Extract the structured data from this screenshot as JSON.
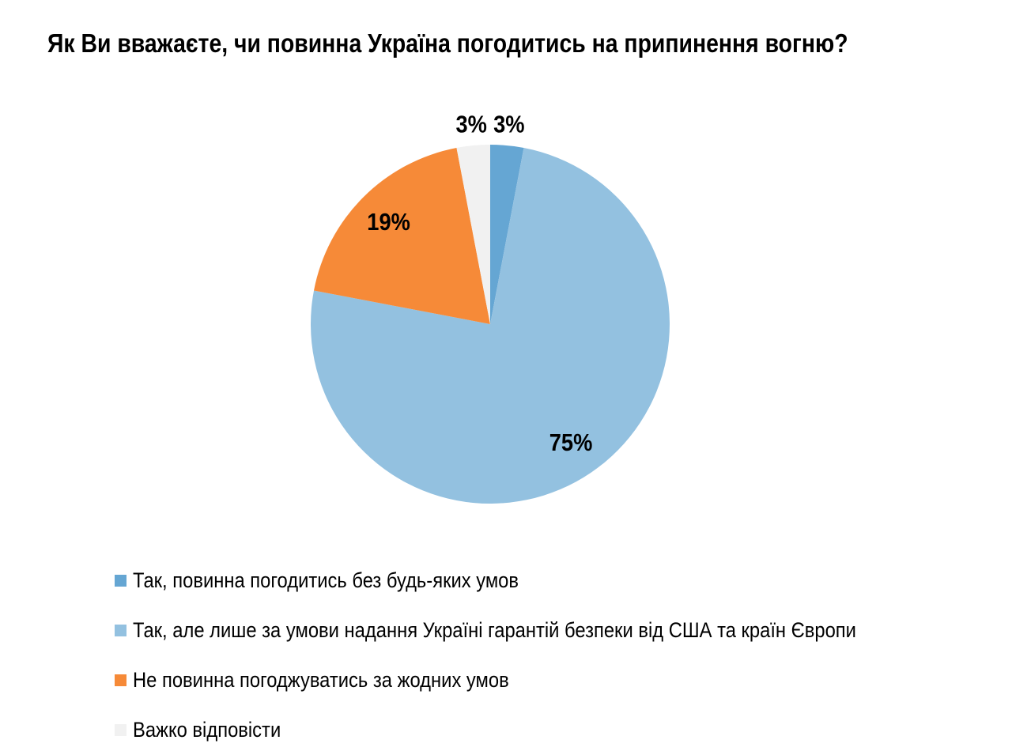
{
  "chart_data": {
    "type": "pie",
    "title": "Як Ви вважаєте, чи повинна Україна погодитись на припинення вогню?",
    "start": "top, clockwise",
    "legend_position": "bottom",
    "slices": [
      {
        "name": "Так, повинна погодитись без будь-яких умов",
        "value": 3,
        "label": "3%",
        "color": "#65a6d3"
      },
      {
        "name": "Так, але лише за умови надання Україні гарантій безпеки від США та країн Європи",
        "value": 75,
        "label": "75%",
        "color": "#93c1e0"
      },
      {
        "name": "Не повинна погоджуватись за жодних умов",
        "value": 19,
        "label": "19%",
        "color": "#f68a38"
      },
      {
        "name": "Важко відповісти",
        "value": 3,
        "label": "3%",
        "color": "#f1f1f1"
      }
    ]
  }
}
